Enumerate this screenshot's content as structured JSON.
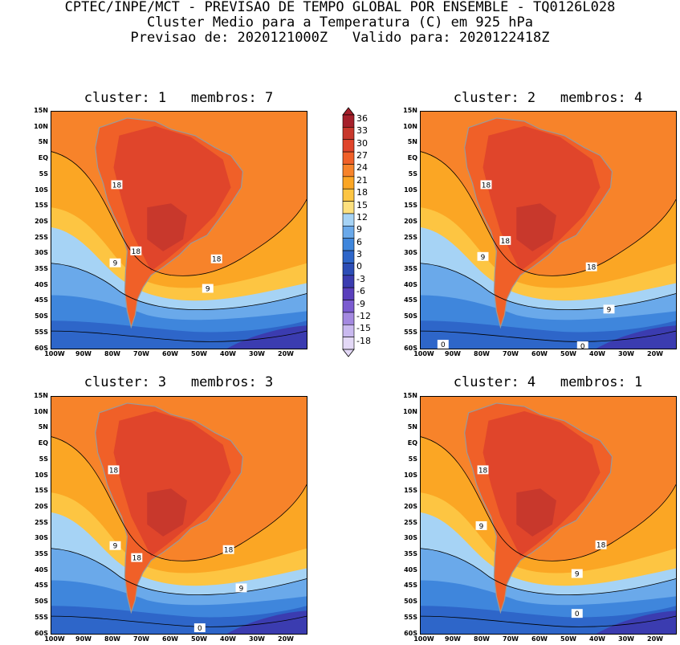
{
  "header": {
    "line1": "CPTEC/INPE/MCT - PREVISAO DE TEMPO GLOBAL POR ENSEMBLE - TQ0126L028",
    "line2": "Cluster Medio para a Temperatura (C) em 925 hPa",
    "line3": "Previsao de: 2020121000Z   Valido para: 2020122418Z"
  },
  "axes": {
    "y_ticks": [
      "15N",
      "10N",
      "5N",
      "EQ",
      "5S",
      "10S",
      "15S",
      "20S",
      "25S",
      "30S",
      "35S",
      "40S",
      "45S",
      "50S",
      "55S",
      "60S"
    ],
    "x_ticks": [
      "100W",
      "90W",
      "80W",
      "70W",
      "60W",
      "50W",
      "40W",
      "30W",
      "20W"
    ]
  },
  "colorbar": {
    "labels": [
      "36",
      "33",
      "30",
      "27",
      "24",
      "21",
      "18",
      "15",
      "12",
      "9",
      "6",
      "3",
      "0",
      "-3",
      "-6",
      "-9",
      "-12",
      "-15",
      "-18"
    ],
    "colors": [
      "#a5202b",
      "#c8382c",
      "#e0452b",
      "#f06028",
      "#f7832a",
      "#fba624",
      "#fdc542",
      "#fde07e",
      "#a6d3f5",
      "#6aa9ea",
      "#3f86dc",
      "#2e66c9",
      "#2c4db6",
      "#3b3cb0",
      "#5a3fbc",
      "#7b5bd0",
      "#a489e0",
      "#c9b9ef",
      "#e3d8f6"
    ],
    "panel_colors": {
      "warm": "#f7832a",
      "hot": "#f06028",
      "veryhot": "#e0452b",
      "max": "#c8382c",
      "mid": "#fba624",
      "light": "#fdc542",
      "pale": "#fde07e",
      "cool": "#a6d3f5",
      "cold1": "#6aa9ea",
      "cold2": "#3f86dc",
      "cold3": "#2e66c9",
      "cold4": "#3b3cb0"
    }
  },
  "panels": [
    {
      "title": "cluster: 1   membros: 7",
      "labels": [
        "18",
        "18",
        "18",
        "9",
        "9"
      ]
    },
    {
      "title": "cluster: 2   membros: 4",
      "labels": [
        "18",
        "18",
        "18",
        "9",
        "9",
        "0",
        "0"
      ]
    },
    {
      "title": "cluster: 3   membros: 3",
      "labels": [
        "18",
        "18",
        "18",
        "9",
        "9",
        "0"
      ]
    },
    {
      "title": "cluster: 4   membros: 1",
      "labels": [
        "18",
        "18",
        "9",
        "9",
        "0"
      ]
    }
  ]
}
